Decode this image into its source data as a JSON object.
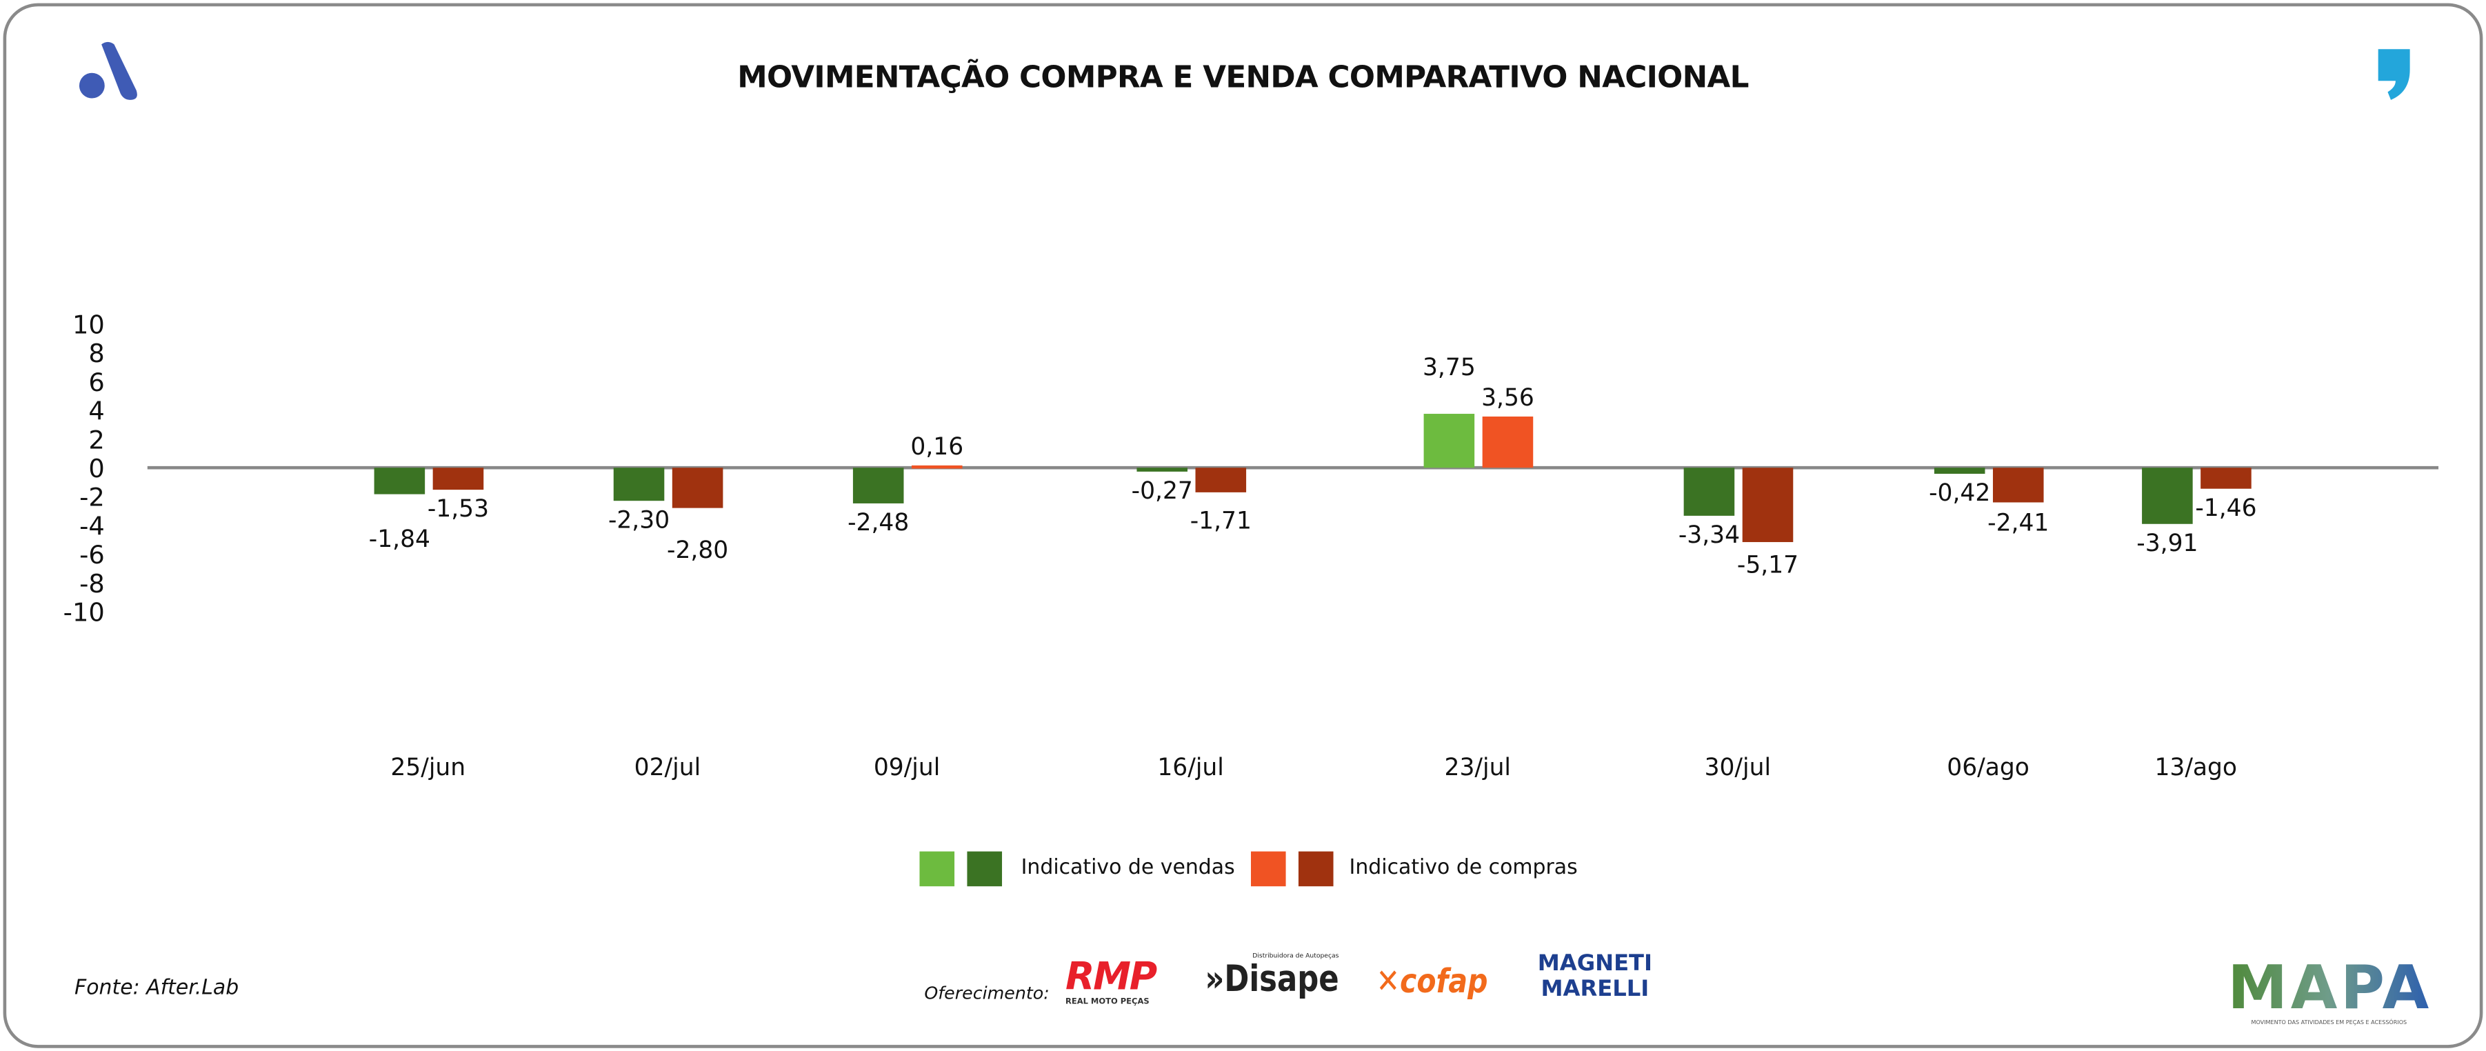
{
  "title": "MOVIMENTAÇÃO COMPRA E VENDA COMPARATIVO NACIONAL",
  "footer": {
    "source": "Fonte: After.Lab",
    "sponsor_label": "Oferecimento:",
    "sponsors": [
      "RMP",
      "Disape",
      "cofap",
      "MAGNETI MARELLI"
    ],
    "sponsor_sub": {
      "rmp": "REAL MOTO PEÇAS",
      "disape": "Distribuidora de Autopeças"
    },
    "brand": "MAPA",
    "brand_sub": "MOVIMENTO DAS ATIVIDADES EM PEÇAS E ACESSÓRIOS"
  },
  "logos": {
    "top_left": "A-logo-icon",
    "top_right": "comma-logo-icon"
  },
  "colors": {
    "vendas_pos": "#6dbb3f",
    "vendas_neg": "#3b7323",
    "compras_pos": "#f05323",
    "compras_neg": "#a0320f",
    "axis": "#888888"
  },
  "chart_data": {
    "type": "bar",
    "title": "MOVIMENTAÇÃO COMPRA E VENDA COMPARATIVO NACIONAL",
    "categories": [
      "25/jun",
      "02/jul",
      "09/jul",
      "16/jul",
      "23/jul",
      "30/jul",
      "06/ago",
      "13/ago"
    ],
    "series": [
      {
        "name": "Indicativo de vendas",
        "values": [
          -1.84,
          -2.3,
          -2.48,
          -0.27,
          3.75,
          -3.34,
          -0.42,
          -3.91
        ],
        "labels": [
          "-1,84",
          "-2,30",
          "-2,48",
          "-0,27",
          "3,75",
          "-3,34",
          "-0,42",
          "-3,91"
        ]
      },
      {
        "name": "Indicativo de compras",
        "values": [
          -1.53,
          -2.8,
          0.16,
          -1.71,
          3.56,
          -5.17,
          -2.41,
          -1.46
        ],
        "labels": [
          "-1,53",
          "-2,80",
          "0,16",
          "-1,71",
          "3,56",
          "-5,17",
          "-2,41",
          "-1,46"
        ]
      }
    ],
    "yticks": [
      "10",
      "8",
      "6",
      "4",
      "2",
      "0",
      "-2",
      "-4",
      "-6",
      "-8",
      "-10"
    ],
    "ylim": [
      -10,
      10
    ],
    "xlabel": "",
    "ylabel": "",
    "grid": false,
    "legend": "bottom-center"
  }
}
